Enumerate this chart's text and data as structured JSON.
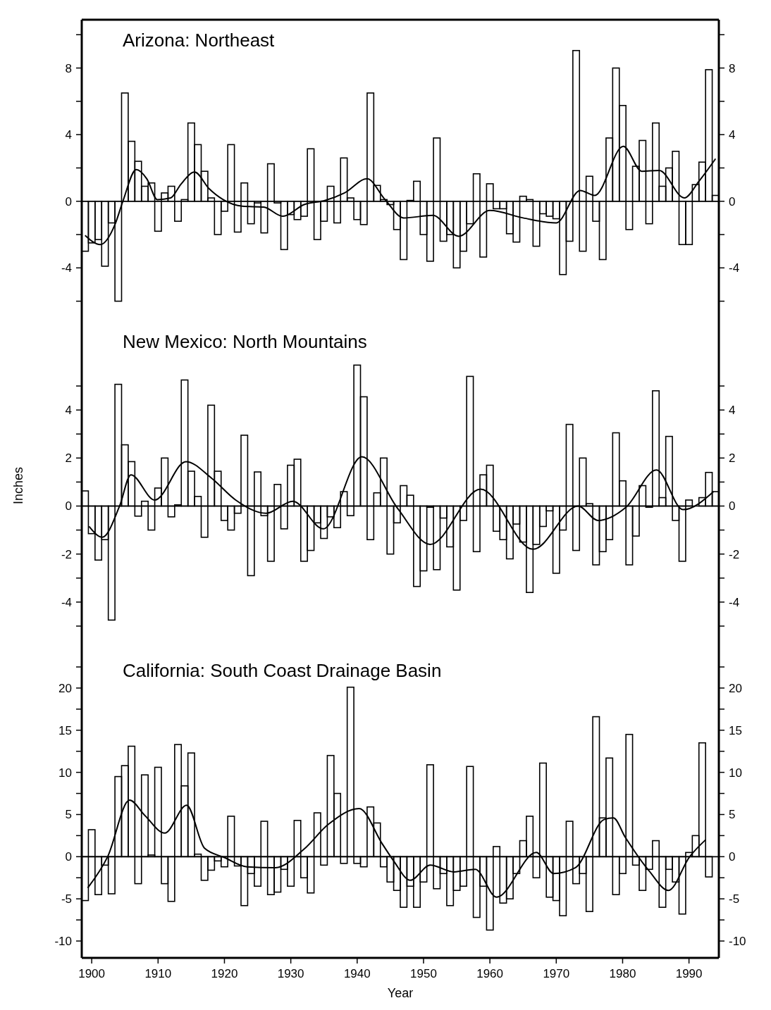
{
  "chart_data": [
    {
      "type": "bar",
      "title": "Arizona: Northeast",
      "xlim": [
        1898.5,
        1994.5
      ],
      "ylim": [
        -7.2,
        10.9
      ],
      "yticks": [
        {
          "value": -6,
          "label": null
        },
        -4,
        {
          "value": -2,
          "label": null
        },
        0,
        {
          "value": 2,
          "label": null
        },
        4,
        {
          "value": 6,
          "label": null
        },
        8,
        {
          "value": 10,
          "label": null
        }
      ],
      "y2lim": [
        -7.2,
        10.9
      ],
      "y2ticks": [
        {
          "value": -6,
          "label": null
        },
        -4,
        {
          "value": -2,
          "label": null
        },
        0,
        {
          "value": 2,
          "label": null
        },
        4,
        {
          "value": 6,
          "label": null
        },
        8,
        {
          "value": 10,
          "label": null
        }
      ],
      "tick_labels": "y",
      "grid": false,
      "ref_lines": [
        {
          "axis": "y",
          "value": 0
        }
      ],
      "series": [
        {
          "color": "#000000",
          "x": [
            1899,
            1900,
            1901,
            1902,
            1903,
            1904,
            1905,
            1906,
            1907,
            1908,
            1909,
            1910,
            1911,
            1912,
            1913,
            1914,
            1915,
            1916,
            1917,
            1918,
            1919,
            1920,
            1921,
            1922,
            1923,
            1924,
            1925,
            1926,
            1927,
            1928,
            1929,
            1930,
            1931,
            1932,
            1933,
            1934,
            1935,
            1936,
            1937,
            1938,
            1939,
            1940,
            1941,
            1942,
            1943,
            1944,
            1945,
            1946,
            1947,
            1948,
            1949,
            1950,
            1951,
            1952,
            1953,
            1954,
            1955,
            1956,
            1957,
            1958,
            1959,
            1960,
            1961,
            1962,
            1963,
            1964,
            1965,
            1966,
            1967,
            1968,
            1969,
            1970,
            1971,
            1972,
            1973,
            1974,
            1975,
            1976,
            1977,
            1978,
            1979,
            1980,
            1981,
            1982,
            1983,
            1984,
            1985,
            1986,
            1987,
            1988,
            1989,
            1990,
            1991,
            1992,
            1993,
            1994
          ],
          "values": [
            -3.0,
            -2.5,
            -2.3,
            -3.9,
            -1.3,
            -6.0,
            6.5,
            3.6,
            2.4,
            0.9,
            1.1,
            -1.8,
            0.5,
            0.9,
            -1.2,
            0.1,
            4.7,
            3.4,
            1.8,
            0.2,
            -2.0,
            -0.6,
            3.4,
            -1.85,
            1.1,
            -1.35,
            -0.1,
            -1.9,
            2.25,
            -0.1,
            -2.9,
            -0.8,
            -1.1,
            -0.9,
            3.15,
            -2.3,
            -1.2,
            0.9,
            -1.3,
            2.6,
            0.2,
            -1.1,
            -1.4,
            6.5,
            0.95,
            0.1,
            -0.2,
            -1.7,
            -3.5,
            0.05,
            1.2,
            -2.0,
            -3.6,
            3.8,
            -2.4,
            -2.0,
            -4.0,
            -3.0,
            -1.35,
            1.65,
            -3.35,
            1.05,
            -0.45,
            -0.45,
            -1.95,
            -2.45,
            0.3,
            0.1,
            -2.7,
            -0.75,
            -0.9,
            -1.05,
            -4.4,
            -2.4,
            9.05,
            -3.0,
            1.5,
            -1.2,
            -3.5,
            3.8,
            8.0,
            5.75,
            -1.7,
            2.1,
            3.65,
            -1.35,
            4.7,
            0.9,
            2.0,
            3.0,
            -2.6,
            -2.6,
            1.0,
            2.35,
            7.9,
            0.35
          ]
        },
        {
          "type": "line",
          "color": "#000000",
          "x": [
            1899,
            1901.3,
            1903.5,
            1904.7,
            1906.7,
            1908.3,
            1909.9,
            1911.9,
            1913.4,
            1915.5,
            1917.7,
            1919.8,
            1922.7,
            1925.9,
            1928.8,
            1932,
            1935.2,
            1938.1,
            1941.5,
            1944.2,
            1947,
            1951.4,
            1955.3,
            1960,
            1965,
            1970,
            1973.6,
            1975.8,
            1980.1,
            1982.9,
            1985.5,
            1989.3,
            1991.5,
            1994
          ],
          "values": [
            -2.05,
            -2.6,
            -1.4,
            0,
            1.9,
            1.35,
            0.1,
            0.2,
            1.0,
            1.75,
            0.75,
            0.1,
            -0.3,
            -0.35,
            -0.9,
            -0.2,
            0.05,
            0.5,
            1.35,
            0.1,
            -1.0,
            -0.85,
            -2.1,
            -0.55,
            -1.0,
            -1.3,
            0.65,
            0.35,
            3.3,
            1.8,
            1.85,
            0.2,
            1.2,
            2.55
          ]
        }
      ]
    },
    {
      "type": "bar",
      "title": "New Mexico: North Mountains",
      "ylabel": "Inches",
      "xlim": [
        1898.5,
        1994.5
      ],
      "ylim": [
        -6,
        7.7
      ],
      "yticks": [
        {
          "value": -5,
          "label": null
        },
        -4,
        {
          "value": -3,
          "label": null
        },
        -2,
        {
          "value": -1,
          "label": null
        },
        0,
        {
          "value": 1,
          "label": null
        },
        2,
        {
          "value": 3,
          "label": null
        },
        4,
        {
          "value": 5,
          "label": null
        }
      ],
      "y2lim": [
        -6,
        7.7
      ],
      "y2ticks": [
        {
          "value": -5,
          "label": null
        },
        -4,
        {
          "value": -3,
          "label": null
        },
        -2,
        {
          "value": -1,
          "label": null
        },
        0,
        {
          "value": 1,
          "label": null
        },
        2,
        {
          "value": 3,
          "label": null
        },
        4,
        {
          "value": 5,
          "label": null
        }
      ],
      "tick_labels": "y",
      "grid": false,
      "ref_lines": [
        {
          "axis": "y",
          "value": 0
        }
      ],
      "series": [
        {
          "color": "#000000",
          "x": [
            1899,
            1900,
            1901,
            1902,
            1903,
            1904,
            1905,
            1906,
            1907,
            1908,
            1909,
            1910,
            1911,
            1912,
            1913,
            1914,
            1915,
            1916,
            1917,
            1918,
            1919,
            1920,
            1921,
            1922,
            1923,
            1924,
            1925,
            1926,
            1927,
            1928,
            1929,
            1930,
            1931,
            1932,
            1933,
            1934,
            1935,
            1936,
            1937,
            1938,
            1939,
            1940,
            1941,
            1942,
            1943,
            1944,
            1945,
            1946,
            1947,
            1948,
            1949,
            1950,
            1951,
            1952,
            1953,
            1954,
            1955,
            1956,
            1957,
            1958,
            1959,
            1960,
            1961,
            1962,
            1963,
            1964,
            1965,
            1966,
            1967,
            1968,
            1969,
            1970,
            1971,
            1972,
            1973,
            1974,
            1975,
            1976,
            1977,
            1978,
            1979,
            1980,
            1981,
            1982,
            1983,
            1984,
            1985,
            1986,
            1987,
            1988,
            1989,
            1990,
            1991,
            1992,
            1993,
            1994
          ],
          "values": [
            0.63,
            -1.15,
            -2.25,
            -1.4,
            -4.75,
            5.07,
            2.55,
            1.85,
            -0.42,
            0.2,
            -1.0,
            0.75,
            2.0,
            -0.45,
            0.05,
            5.25,
            1.45,
            0.4,
            -1.3,
            4.2,
            1.45,
            -0.6,
            -1.0,
            -0.3,
            2.95,
            -2.9,
            1.42,
            -0.4,
            -2.3,
            0.9,
            -0.95,
            1.7,
            1.95,
            -2.3,
            -1.85,
            -0.7,
            -1.35,
            -0.45,
            -0.9,
            0.6,
            -0.4,
            5.87,
            4.55,
            -1.4,
            0.55,
            2.0,
            -2.0,
            -0.7,
            0.85,
            0.45,
            -3.35,
            -2.7,
            -0.05,
            -2.65,
            -0.5,
            -1.7,
            -3.5,
            -0.6,
            5.4,
            -1.9,
            1.3,
            1.7,
            -1.05,
            -1.4,
            -2.2,
            -0.75,
            -1.5,
            -3.6,
            -1.6,
            -0.85,
            -0.2,
            -2.8,
            -1.0,
            3.4,
            -1.85,
            2.0,
            0.1,
            -2.45,
            -1.9,
            -1.4,
            3.05,
            1.05,
            -2.45,
            -1.25,
            0.85,
            -0.05,
            4.8,
            0.35,
            2.9,
            -0.6,
            -2.3,
            0.25,
            0.0,
            0.35,
            1.4,
            0.6
          ]
        },
        {
          "type": "line",
          "color": "#000000",
          "x": [
            1899.6,
            1901.6,
            1904.2,
            1905.9,
            1909.5,
            1914.2,
            1918.1,
            1921.7,
            1926.3,
            1930.3,
            1934.9,
            1940.7,
            1946.1,
            1951,
            1958.6,
            1966.5,
            1973.3,
            1976.3,
            1980.5,
            1985.1,
            1989.1,
            1993.7
          ],
          "values": [
            -0.85,
            -1.3,
            0,
            1.3,
            0.25,
            1.85,
            1.15,
            0.25,
            -0.3,
            0.2,
            -0.95,
            2.05,
            -0.1,
            -1.6,
            0.7,
            -1.8,
            0,
            -0.6,
            -0.05,
            1.5,
            -0.15,
            0.6
          ]
        }
      ]
    },
    {
      "type": "bar",
      "title": "California: South Coast Drainage Basin",
      "xlabel": "Year",
      "xlim": [
        1898.5,
        1994.5
      ],
      "xticks": [
        1900,
        1910,
        1920,
        1930,
        1940,
        1950,
        1960,
        1970,
        1980,
        1990
      ],
      "ylim": [
        -12,
        24.5
      ],
      "yticks": [
        -10,
        {
          "value": -7.5,
          "label": null
        },
        -5,
        {
          "value": -2.5,
          "label": null
        },
        0,
        {
          "value": 2.5,
          "label": null
        },
        5,
        {
          "value": 7.5,
          "label": null
        },
        10,
        {
          "value": 12.5,
          "label": null
        },
        15,
        {
          "value": 17.5,
          "label": null
        },
        20,
        {
          "value": 22.5,
          "label": null
        }
      ],
      "y2lim": [
        -12,
        24.5
      ],
      "y2ticks": [
        -10,
        {
          "value": -7.5,
          "label": null
        },
        -5,
        {
          "value": -2.5,
          "label": null
        },
        0,
        {
          "value": 2.5,
          "label": null
        },
        5,
        {
          "value": 7.5,
          "label": null
        },
        10,
        {
          "value": 12.5,
          "label": null
        },
        15,
        {
          "value": 17.5,
          "label": null
        },
        20,
        {
          "value": 22.5,
          "label": null
        }
      ],
      "grid": false,
      "ref_lines": [
        {
          "axis": "y",
          "value": 0
        }
      ],
      "series": [
        {
          "color": "#000000",
          "x": [
            1899,
            1900,
            1901,
            1902,
            1903,
            1904,
            1905,
            1906,
            1907,
            1908,
            1909,
            1910,
            1911,
            1912,
            1913,
            1914,
            1915,
            1916,
            1917,
            1918,
            1919,
            1920,
            1921,
            1922,
            1923,
            1924,
            1925,
            1926,
            1927,
            1928,
            1929,
            1930,
            1931,
            1932,
            1933,
            1934,
            1935,
            1936,
            1937,
            1938,
            1939,
            1940,
            1941,
            1942,
            1943,
            1944,
            1945,
            1946,
            1947,
            1948,
            1949,
            1950,
            1951,
            1952,
            1953,
            1954,
            1955,
            1956,
            1957,
            1958,
            1959,
            1960,
            1961,
            1962,
            1963,
            1964,
            1965,
            1966,
            1967,
            1968,
            1969,
            1970,
            1971,
            1972,
            1973,
            1974,
            1975,
            1976,
            1977,
            1978,
            1979,
            1980,
            1981,
            1982,
            1983,
            1984,
            1985,
            1986,
            1987,
            1988,
            1989,
            1990,
            1991,
            1992,
            1993
          ],
          "values": [
            -5.2,
            3.2,
            -4.5,
            -1.0,
            -4.4,
            9.5,
            10.8,
            13.1,
            -3.2,
            9.7,
            0.2,
            10.6,
            -3.2,
            -5.3,
            13.3,
            8.4,
            12.3,
            0.3,
            -2.8,
            -1.6,
            -0.5,
            -1.2,
            4.8,
            -1.1,
            -5.8,
            -2.0,
            -3.5,
            4.2,
            -4.5,
            -4.2,
            -1.5,
            -3.5,
            4.3,
            -2.5,
            -4.3,
            5.2,
            -1.0,
            12.0,
            7.5,
            -0.8,
            20.1,
            -0.8,
            -1.2,
            5.9,
            4.0,
            -1.2,
            -3.0,
            -4.0,
            -6.0,
            -3.5,
            -6.0,
            -3.0,
            10.9,
            -3.8,
            -2.0,
            -5.8,
            -4.0,
            -3.5,
            10.7,
            -7.2,
            -3.5,
            -8.7,
            1.2,
            -5.5,
            -5.0,
            -2.0,
            1.9,
            4.8,
            -2.5,
            11.1,
            -4.8,
            -5.2,
            -7.0,
            4.2,
            -3.2,
            -2.0,
            -6.5,
            16.6,
            4.6,
            11.7,
            -4.5,
            -2.0,
            14.5,
            -1.0,
            -4.0,
            -1.5,
            1.9,
            -6.0,
            -1.5,
            -3.0,
            -6.8,
            0.5,
            2.5,
            13.5,
            -2.4
          ]
        },
        {
          "type": "line",
          "color": "#000000",
          "x": [
            1899.4,
            1902.4,
            1905.7,
            1908,
            1911,
            1914.3,
            1917,
            1920,
            1923.4,
            1927.7,
            1932,
            1935.6,
            1940.3,
            1943.8,
            1945.5,
            1948,
            1951,
            1954.6,
            1957.8,
            1961,
            1967,
            1969.6,
            1972.9,
            1977.2,
            1978.6,
            1980.4,
            1984,
            1986.9,
            1990.1,
            1992.5
          ],
          "values": [
            -3.7,
            0,
            6.7,
            4.9,
            2.8,
            6.1,
            1.0,
            -0.1,
            -1.2,
            -1.3,
            0.9,
            3.8,
            5.7,
            1.5,
            -0.5,
            -2.8,
            -1.0,
            -1.8,
            -1.5,
            -4.8,
            0.5,
            -2.0,
            -1.3,
            4.4,
            4.6,
            2.3,
            -1.7,
            -4.0,
            0,
            2.0
          ]
        }
      ]
    }
  ]
}
